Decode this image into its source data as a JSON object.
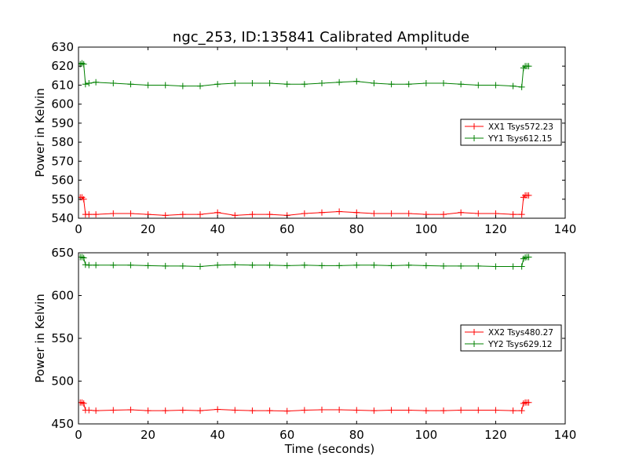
{
  "page_title": "ngc_253, ID:135841 Calibrated Amplitude",
  "chart_data": [
    {
      "type": "line",
      "title": "ngc_253, ID:135841 Calibrated Amplitude",
      "xlabel": "",
      "ylabel": "Power in Kelvin",
      "xlim": [
        0,
        140
      ],
      "ylim": [
        540,
        630
      ],
      "xticks": [
        0,
        20,
        40,
        60,
        80,
        100,
        120,
        140
      ],
      "yticks": [
        540,
        550,
        560,
        570,
        580,
        590,
        600,
        610,
        620,
        630
      ],
      "grid": false,
      "legend_position": "right",
      "series": [
        {
          "name": "XX1 Tsys572.23",
          "color": "#ff0000",
          "marker": "plus",
          "x": [
            0.5,
            1.0,
            1.5,
            2.0,
            3,
            5,
            10,
            15,
            20,
            25,
            30,
            35,
            40,
            45,
            50,
            55,
            60,
            65,
            70,
            75,
            80,
            85,
            90,
            95,
            100,
            105,
            110,
            115,
            120,
            125,
            127.5,
            128,
            128.5,
            129,
            129.5
          ],
          "y": [
            551,
            551,
            550,
            542,
            542,
            542,
            542.5,
            542.5,
            542,
            541.5,
            542,
            542,
            543,
            541.5,
            542,
            542,
            541.5,
            542.5,
            543,
            543.5,
            543,
            542.5,
            542.5,
            542.5,
            542,
            542,
            543,
            542.5,
            542.5,
            542,
            542,
            551,
            552,
            552,
            552
          ]
        },
        {
          "name": "YY1 Tsys612.15",
          "color": "#008000",
          "marker": "plus",
          "x": [
            0.5,
            1.0,
            1.5,
            2.0,
            3,
            5,
            10,
            15,
            20,
            25,
            30,
            35,
            40,
            45,
            50,
            55,
            60,
            65,
            70,
            75,
            80,
            85,
            90,
            95,
            100,
            105,
            110,
            115,
            120,
            125,
            127.5,
            128,
            128.5,
            129,
            129.5
          ],
          "y": [
            621,
            621.5,
            621,
            610.5,
            611,
            611.5,
            611,
            610.5,
            610,
            610,
            609.5,
            609.5,
            610.5,
            611,
            611,
            611,
            610.5,
            610.5,
            611,
            611.5,
            612,
            611,
            610.5,
            610.5,
            611,
            611,
            610.5,
            610,
            610,
            609.5,
            609,
            619,
            620,
            620,
            620
          ]
        }
      ]
    },
    {
      "type": "line",
      "title": "",
      "xlabel": "Time (seconds)",
      "ylabel": "Power in Kelvin",
      "xlim": [
        0,
        140
      ],
      "ylim": [
        450,
        650
      ],
      "xticks": [
        0,
        20,
        40,
        60,
        80,
        100,
        120,
        140
      ],
      "yticks": [
        450,
        500,
        550,
        600,
        650
      ],
      "grid": false,
      "legend_position": "right",
      "series": [
        {
          "name": "XX2 Tsys480.27",
          "color": "#ff0000",
          "marker": "plus",
          "x": [
            0.5,
            1.0,
            1.5,
            2.0,
            3,
            5,
            10,
            15,
            20,
            25,
            30,
            35,
            40,
            45,
            50,
            55,
            60,
            65,
            70,
            75,
            80,
            85,
            90,
            95,
            100,
            105,
            110,
            115,
            120,
            125,
            127.5,
            128,
            128.5,
            129,
            129.5
          ],
          "y": [
            475,
            475,
            474,
            466,
            466,
            465.5,
            466,
            466.5,
            465.5,
            465.5,
            466,
            465.5,
            467,
            466,
            465.5,
            465.5,
            465,
            466,
            466.5,
            466.5,
            466,
            465.5,
            466,
            466,
            465.5,
            465.5,
            466,
            466,
            466,
            465.5,
            465.5,
            474,
            475,
            475,
            475
          ]
        },
        {
          "name": "YY2 Tsys629.12",
          "color": "#008000",
          "marker": "plus",
          "x": [
            0.5,
            1.0,
            1.5,
            2.0,
            3,
            5,
            10,
            15,
            20,
            25,
            30,
            35,
            40,
            45,
            50,
            55,
            60,
            65,
            70,
            75,
            80,
            85,
            90,
            95,
            100,
            105,
            110,
            115,
            120,
            125,
            127.5,
            128,
            128.5,
            129,
            129.5
          ],
          "y": [
            645,
            645,
            644,
            636,
            635.5,
            635.5,
            635.5,
            635.5,
            635,
            634.5,
            634.5,
            634,
            635.5,
            636,
            635.5,
            635.5,
            635,
            635.5,
            635,
            635,
            635.5,
            635.5,
            635,
            635.5,
            635,
            634.5,
            634.5,
            634.5,
            634,
            634,
            634,
            643,
            644.5,
            645,
            645
          ]
        }
      ]
    }
  ]
}
